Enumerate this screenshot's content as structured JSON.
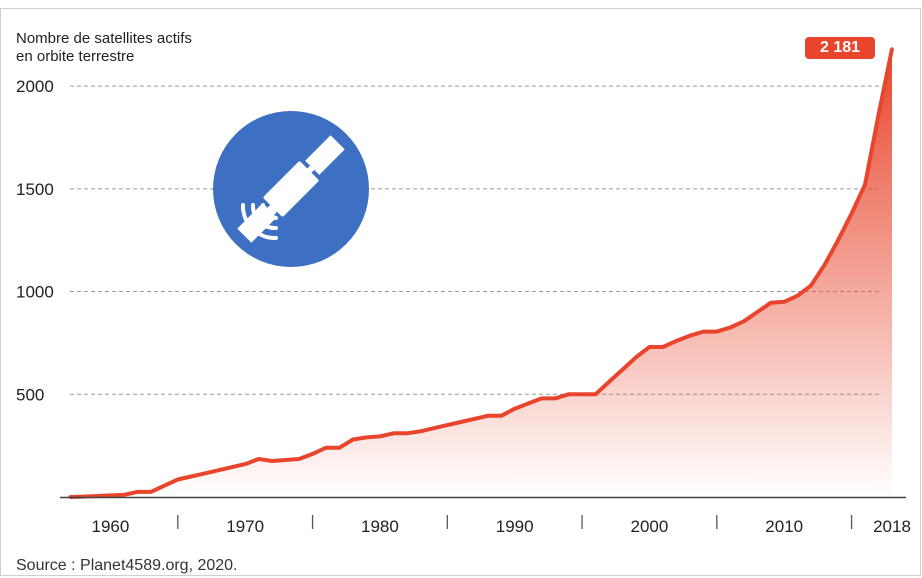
{
  "chart_data": {
    "type": "area",
    "ylabel_lines": [
      "Nombre de satellites actifs",
      "en orbite terrestre"
    ],
    "source": "Source : Planet4589.org, 2020.",
    "callout": "2 181",
    "ylim": [
      0,
      2200
    ],
    "xlim": [
      1957,
      2018
    ],
    "yticks": [
      500,
      1000,
      1500,
      2000
    ],
    "ytick_labels": [
      "500",
      "1000",
      "1500",
      "2000"
    ],
    "xticks": [
      1960,
      1970,
      1980,
      1990,
      2000,
      2010,
      2018
    ],
    "xtick_labels": [
      "1960",
      "1970",
      "1980",
      "1990",
      "2000",
      "2010",
      "2018"
    ],
    "x_minor_ticks": [
      1965,
      1975,
      1985,
      1995,
      2005,
      2015
    ],
    "grid": "horizontal dashed",
    "colors": {
      "line": "#e8452c",
      "callout": "#e8452c",
      "icon_circle": "#3d6fc2"
    },
    "icon": "satellite-icon",
    "x": [
      1957,
      1958,
      1959,
      1960,
      1961,
      1962,
      1963,
      1964,
      1965,
      1966,
      1967,
      1968,
      1969,
      1970,
      1971,
      1972,
      1973,
      1974,
      1975,
      1976,
      1977,
      1978,
      1979,
      1980,
      1981,
      1982,
      1983,
      1984,
      1985,
      1986,
      1987,
      1988,
      1989,
      1990,
      1991,
      1992,
      1993,
      1994,
      1995,
      1996,
      1997,
      1998,
      1999,
      2000,
      2001,
      2002,
      2003,
      2004,
      2005,
      2006,
      2007,
      2008,
      2009,
      2010,
      2011,
      2012,
      2013,
      2014,
      2015,
      2016,
      2017,
      2018
    ],
    "y": [
      0,
      2,
      5,
      8,
      10,
      25,
      25,
      55,
      85,
      100,
      115,
      130,
      145,
      160,
      185,
      175,
      180,
      185,
      210,
      240,
      240,
      280,
      290,
      295,
      310,
      310,
      320,
      335,
      350,
      365,
      380,
      395,
      395,
      430,
      455,
      480,
      480,
      500,
      500,
      500,
      560,
      620,
      680,
      730,
      730,
      760,
      785,
      805,
      805,
      825,
      855,
      900,
      945,
      950,
      980,
      1030,
      1130,
      1250,
      1380,
      1520,
      1860,
      2181
    ]
  }
}
